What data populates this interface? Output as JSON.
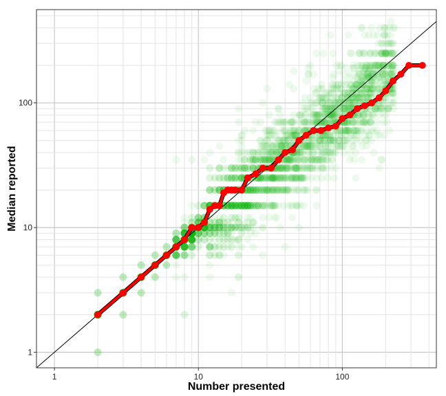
{
  "chart_data": {
    "type": "scatter",
    "title": "",
    "xlabel": "Number presented",
    "ylabel": "Median reported",
    "x_scale": "log10",
    "y_scale": "log10",
    "xlim": [
      0.75,
      450
    ],
    "ylim": [
      0.75,
      560
    ],
    "x_ticks": [
      {
        "value": 1,
        "label": "1"
      },
      {
        "value": 10,
        "label": "10"
      },
      {
        "value": 100,
        "label": "100"
      }
    ],
    "y_ticks": [
      {
        "value": 1,
        "label": "1"
      },
      {
        "value": 10,
        "label": "10"
      },
      {
        "value": 100,
        "label": "100"
      }
    ],
    "grid": true,
    "legend": "none",
    "colors": {
      "points": "#11bb11",
      "median_line": "#ff0000",
      "reference_line": "#000000",
      "grid_major": "#c8c8c8",
      "grid_minor": "#e4e4e4"
    },
    "reference_line": {
      "type": "identity",
      "x": [
        0.75,
        450
      ],
      "y": [
        0.75,
        450
      ]
    },
    "series": [
      {
        "kind": "median_line",
        "x": [
          2,
          3,
          4,
          5,
          6,
          7,
          8,
          9,
          10,
          11,
          12,
          13,
          14,
          15,
          16,
          17,
          18,
          20,
          22,
          25,
          28,
          32,
          36,
          40,
          45,
          50,
          56,
          63,
          71,
          80,
          90,
          100,
          113,
          127,
          143,
          160,
          180,
          200,
          225,
          255,
          290,
          360
        ],
        "y": [
          2,
          3,
          4,
          5,
          6,
          7,
          8,
          10,
          10,
          11,
          14,
          15,
          15,
          19,
          20,
          20,
          20,
          20,
          25,
          27,
          30,
          30,
          35,
          40,
          42,
          50,
          55,
          60,
          60,
          63,
          65,
          75,
          80,
          90,
          95,
          100,
          110,
          125,
          150,
          170,
          200,
          200
        ]
      }
    ]
  }
}
